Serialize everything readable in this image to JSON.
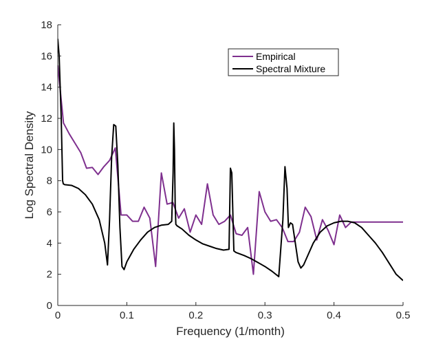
{
  "chart_data": {
    "type": "line",
    "xlabel": "Frequency (1/month)",
    "ylabel": "Log Spectral Density",
    "xlim": [
      0,
      0.5
    ],
    "ylim": [
      0,
      18
    ],
    "xticks": [
      0,
      0.1,
      0.2,
      0.3,
      0.4,
      0.5
    ],
    "xtick_labels": [
      "0",
      "0.1",
      "0.2",
      "0.3",
      "0.4",
      "0.5"
    ],
    "yticks": [
      0,
      2,
      4,
      6,
      8,
      10,
      12,
      14,
      16,
      18
    ],
    "ytick_labels": [
      "0",
      "2",
      "4",
      "6",
      "8",
      "10",
      "12",
      "14",
      "16",
      "18"
    ],
    "grid": false,
    "legend_position": "top-right",
    "series": [
      {
        "name": "Empirical",
        "color": "#7e2f8e",
        "x": [
          0,
          0.0083,
          0.0167,
          0.025,
          0.0333,
          0.0417,
          0.05,
          0.0583,
          0.0667,
          0.075,
          0.0833,
          0.0917,
          0.1,
          0.1083,
          0.1167,
          0.125,
          0.1333,
          0.1417,
          0.15,
          0.1583,
          0.1667,
          0.175,
          0.1833,
          0.1917,
          0.2,
          0.2083,
          0.2167,
          0.225,
          0.2333,
          0.2417,
          0.25,
          0.2583,
          0.2667,
          0.275,
          0.2833,
          0.2917,
          0.3,
          0.3083,
          0.3167,
          0.325,
          0.3333,
          0.3417,
          0.35,
          0.3583,
          0.3667,
          0.375,
          0.3833,
          0.3917,
          0.4,
          0.4083,
          0.4167,
          0.425,
          0.4333,
          0.4417,
          0.45,
          0.4583,
          0.4667,
          0.475,
          0.4833,
          0.4917,
          0.5
        ],
        "y": [
          15.4,
          11.7,
          11.0,
          10.4,
          9.8,
          8.8,
          8.85,
          8.4,
          8.9,
          9.3,
          10.1,
          5.8,
          5.8,
          5.4,
          5.4,
          6.3,
          5.6,
          2.5,
          8.5,
          6.5,
          6.6,
          5.6,
          6.2,
          4.7,
          5.8,
          5.2,
          7.8,
          5.8,
          5.2,
          5.4,
          5.8,
          4.6,
          4.5,
          5.0,
          2.0,
          7.3,
          6.0,
          5.4,
          5.5,
          5.0,
          4.1,
          4.1,
          4.7,
          6.3,
          5.7,
          4.2,
          5.5,
          4.8,
          3.9,
          5.8,
          5.0,
          5.35,
          5.35,
          5.35,
          5.35,
          5.35,
          5.35,
          5.35,
          5.35,
          5.35,
          5.35
        ]
      },
      {
        "name": "Spectral Mixture",
        "color": "#000000",
        "x": [
          0,
          0.002,
          0.005,
          0.007,
          0.008,
          0.01,
          0.02,
          0.03,
          0.04,
          0.05,
          0.06,
          0.068,
          0.072,
          0.075,
          0.078,
          0.081,
          0.084,
          0.087,
          0.09,
          0.093,
          0.096,
          0.1,
          0.11,
          0.12,
          0.13,
          0.14,
          0.15,
          0.16,
          0.165,
          0.167,
          0.168,
          0.169,
          0.17,
          0.171,
          0.173,
          0.18,
          0.19,
          0.2,
          0.21,
          0.22,
          0.23,
          0.24,
          0.248,
          0.25,
          0.252,
          0.255,
          0.258,
          0.27,
          0.28,
          0.29,
          0.3,
          0.31,
          0.32,
          0.326,
          0.329,
          0.332,
          0.334,
          0.337,
          0.34,
          0.344,
          0.348,
          0.352,
          0.356,
          0.36,
          0.37,
          0.38,
          0.39,
          0.4,
          0.41,
          0.42,
          0.43,
          0.44,
          0.45,
          0.46,
          0.47,
          0.48,
          0.49,
          0.5
        ],
        "y": [
          17.1,
          16.0,
          12.0,
          8.0,
          7.8,
          7.75,
          7.7,
          7.5,
          7.1,
          6.5,
          5.5,
          4.0,
          2.6,
          5.5,
          9.5,
          11.6,
          11.5,
          9.0,
          5.0,
          2.5,
          2.3,
          2.8,
          3.6,
          4.2,
          4.7,
          5.0,
          5.15,
          5.2,
          5.4,
          8.5,
          11.7,
          10.0,
          6.5,
          5.2,
          5.1,
          4.9,
          4.5,
          4.2,
          3.95,
          3.8,
          3.65,
          3.55,
          3.6,
          8.8,
          8.5,
          3.5,
          3.4,
          3.2,
          3.0,
          2.75,
          2.5,
          2.2,
          1.85,
          5.5,
          8.9,
          7.5,
          5.0,
          5.3,
          5.2,
          4.0,
          2.8,
          2.4,
          2.6,
          3.0,
          4.0,
          4.7,
          5.1,
          5.3,
          5.4,
          5.4,
          5.3,
          5.0,
          4.5,
          4.0,
          3.4,
          2.7,
          2.0,
          1.6
        ]
      }
    ]
  }
}
